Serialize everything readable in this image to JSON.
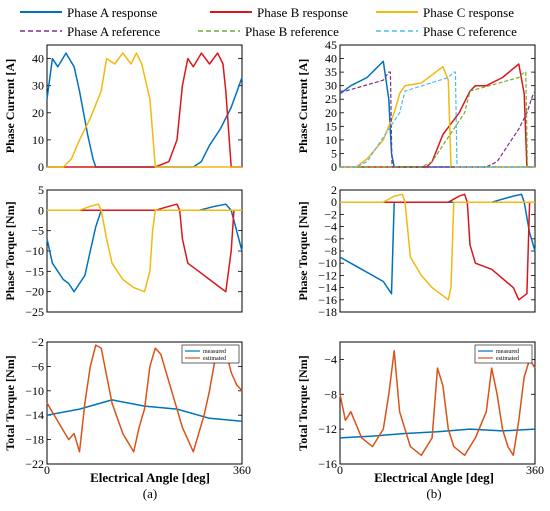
{
  "legend": [
    {
      "label": "Phase A response",
      "color": "#0072BD",
      "dash": false
    },
    {
      "label": "Phase B response",
      "color": "#D9171B",
      "dash": false
    },
    {
      "label": "Phase C response",
      "color": "#F2B90F",
      "dash": false
    },
    {
      "label": "Phase A reference",
      "color": "#7E2F8E",
      "dash": true
    },
    {
      "label": "Phase B reference",
      "color": "#77AC30",
      "dash": true
    },
    {
      "label": "Phase C reference",
      "color": "#4DBEEE",
      "dash": true
    }
  ],
  "xlabel": "Electrical Angle [deg]",
  "xtick_start": "0",
  "xtick_end": "360",
  "sublabels": [
    "(a)",
    "(b)"
  ],
  "colors": {
    "a": "#0072BD",
    "b": "#D9171B",
    "c": "#F2B90F",
    "measured": "#0072BD",
    "estimated": "#D95319"
  },
  "chart_data": [
    {
      "type": "line",
      "panel": "a-top",
      "ylabel": "Phase Current [A]",
      "ylim": [
        0,
        45
      ],
      "yticks": [
        0,
        10,
        20,
        30,
        40
      ],
      "xlim": [
        0,
        360
      ],
      "series": [
        {
          "name": "Phase A response",
          "x": [
            0,
            10,
            20,
            35,
            50,
            60,
            75,
            85,
            90,
            270,
            285,
            300,
            320,
            340,
            360
          ],
          "y": [
            25,
            40,
            37,
            42,
            37,
            28,
            12,
            3,
            0,
            0,
            2,
            8,
            14,
            22,
            33
          ]
        },
        {
          "name": "Phase B response",
          "x": [
            0,
            200,
            225,
            240,
            245,
            250,
            260,
            270,
            285,
            300,
            315,
            325,
            330,
            340,
            360
          ],
          "y": [
            0,
            0,
            2,
            10,
            20,
            30,
            40,
            37,
            42,
            38,
            42,
            38,
            28,
            0,
            0
          ]
        },
        {
          "name": "Phase C response",
          "x": [
            0,
            30,
            45,
            60,
            80,
            100,
            110,
            125,
            140,
            155,
            165,
            175,
            190,
            200,
            360
          ],
          "y": [
            0,
            0,
            3,
            10,
            18,
            28,
            40,
            38,
            42,
            38,
            42,
            38,
            25,
            0,
            0
          ]
        }
      ]
    },
    {
      "type": "line",
      "panel": "b-top",
      "ylabel": "Phase Current [A]",
      "ylim": [
        0,
        45
      ],
      "yticks": [
        0,
        5,
        10,
        15,
        20,
        25,
        30,
        35,
        40,
        45
      ],
      "xlim": [
        0,
        360
      ],
      "series": [
        {
          "name": "Phase A response",
          "x": [
            0,
            20,
            50,
            80,
            90,
            95,
            100,
            360
          ],
          "y": [
            27,
            30,
            33,
            39,
            25,
            5,
            0,
            0
          ]
        },
        {
          "name": "Phase B response",
          "x": [
            0,
            160,
            170,
            190,
            220,
            240,
            250,
            270,
            300,
            330,
            340,
            345,
            360
          ],
          "y": [
            0,
            0,
            2,
            12,
            20,
            28,
            30,
            30,
            33,
            38,
            27,
            0,
            0
          ]
        },
        {
          "name": "Phase C response",
          "x": [
            0,
            30,
            50,
            80,
            100,
            110,
            120,
            150,
            190,
            200,
            205,
            210,
            360
          ],
          "y": [
            0,
            0,
            3,
            10,
            20,
            27,
            30,
            31,
            37,
            32,
            0,
            0,
            0
          ]
        },
        {
          "name": "Phase A reference",
          "x": [
            0,
            10,
            80,
            90,
            93,
            96,
            270,
            290,
            310,
            330,
            345,
            355,
            360
          ],
          "y": [
            28,
            28,
            32,
            35,
            35,
            0,
            0,
            2,
            8,
            14,
            20,
            26,
            28
          ]
        },
        {
          "name": "Phase B reference",
          "x": [
            0,
            150,
            170,
            190,
            210,
            230,
            240,
            330,
            340,
            343,
            346,
            360
          ],
          "y": [
            0,
            0,
            2,
            8,
            14,
            20,
            28,
            33,
            35,
            35,
            0,
            0
          ]
        },
        {
          "name": "Phase C reference",
          "x": [
            0,
            30,
            50,
            70,
            90,
            110,
            120,
            200,
            210,
            213,
            216,
            360
          ],
          "y": [
            0,
            0,
            2,
            8,
            14,
            20,
            28,
            33,
            35,
            35,
            0,
            0
          ]
        }
      ]
    },
    {
      "type": "line",
      "panel": "a-mid",
      "ylabel": "Phase Torque [Nm]",
      "ylim": [
        -25,
        5
      ],
      "yticks": [
        -25,
        -20,
        -15,
        -10,
        -5,
        0,
        5
      ],
      "xlim": [
        0,
        360
      ],
      "series": [
        {
          "name": "Phase A response",
          "x": [
            0,
            10,
            20,
            30,
            40,
            50,
            60,
            70,
            80,
            90,
            100,
            280,
            310,
            330,
            340,
            350,
            360
          ],
          "y": [
            -7,
            -13,
            -15,
            -17,
            -18,
            -20,
            -18,
            -16,
            -10,
            -4,
            0,
            0,
            1,
            1.5,
            0,
            -5,
            -10
          ]
        },
        {
          "name": "Phase B response",
          "x": [
            0,
            200,
            225,
            240,
            245,
            250,
            260,
            280,
            300,
            320,
            330,
            340,
            345,
            360
          ],
          "y": [
            0,
            0,
            1,
            1.5,
            0,
            -7,
            -13,
            -15,
            -17,
            -19,
            -20,
            -10,
            0,
            0
          ]
        },
        {
          "name": "Phase C response",
          "x": [
            0,
            60,
            80,
            95,
            100,
            110,
            120,
            140,
            160,
            180,
            190,
            195,
            200,
            360
          ],
          "y": [
            0,
            0,
            1,
            1.5,
            0,
            -7,
            -13,
            -17,
            -19,
            -20,
            -15,
            -5,
            0,
            0
          ]
        }
      ]
    },
    {
      "type": "line",
      "panel": "b-mid",
      "ylabel": "Phase Torque [Nm]",
      "ylim": [
        -18,
        2
      ],
      "yticks": [
        -18,
        -16,
        -14,
        -12,
        -10,
        -8,
        -6,
        -4,
        -2,
        0,
        2
      ],
      "xlim": [
        0,
        360
      ],
      "series": [
        {
          "name": "Phase A response",
          "x": [
            0,
            20,
            40,
            60,
            80,
            95,
            100,
            280,
            320,
            335,
            340,
            350,
            360
          ],
          "y": [
            -9,
            -10,
            -11,
            -12,
            -13,
            -15,
            0,
            0,
            1,
            1.3,
            0,
            -5,
            -8
          ]
        },
        {
          "name": "Phase B response",
          "x": [
            0,
            200,
            220,
            230,
            235,
            240,
            250,
            280,
            320,
            330,
            345,
            350,
            360
          ],
          "y": [
            0,
            0,
            1,
            1.3,
            0,
            -7,
            -10,
            -11,
            -14,
            -16,
            -15,
            0,
            0
          ]
        },
        {
          "name": "Phase C response",
          "x": [
            0,
            80,
            100,
            115,
            120,
            130,
            150,
            170,
            185,
            200,
            205,
            210,
            360
          ],
          "y": [
            0,
            0,
            1,
            1.3,
            0,
            -9,
            -12,
            -14,
            -15,
            -16,
            -14,
            0,
            0
          ]
        }
      ]
    },
    {
      "type": "line",
      "panel": "a-bot",
      "ylabel": "Total Torque [Nm]",
      "ylim": [
        -22,
        -2
      ],
      "yticks": [
        -22,
        -18,
        -14,
        -10,
        -6,
        -2
      ],
      "xlim": [
        0,
        360
      ],
      "legend_entries": [
        "measured",
        "estimated"
      ],
      "series": [
        {
          "name": "measured",
          "x": [
            0,
            60,
            120,
            180,
            240,
            300,
            360
          ],
          "y": [
            -14,
            -13,
            -11.5,
            -12.5,
            -13,
            -14.5,
            -15
          ]
        },
        {
          "name": "estimated",
          "x": [
            0,
            20,
            40,
            50,
            60,
            70,
            80,
            90,
            100,
            120,
            140,
            160,
            170,
            180,
            190,
            200,
            210,
            230,
            250,
            270,
            280,
            290,
            300,
            310,
            320,
            330,
            340,
            350,
            360
          ],
          "y": [
            -12,
            -15,
            -18,
            -17,
            -20,
            -12,
            -6,
            -2.5,
            -3,
            -12,
            -17,
            -20,
            -16,
            -13,
            -6,
            -3,
            -4,
            -10,
            -16,
            -20,
            -17,
            -14,
            -10,
            -5,
            -3,
            -3.5,
            -7,
            -9,
            -10
          ]
        }
      ]
    },
    {
      "type": "line",
      "panel": "b-bot",
      "ylabel": "Total Torque [Nm]",
      "ylim": [
        -16,
        -2
      ],
      "yticks": [
        -16,
        -12,
        -8,
        -4
      ],
      "xlim": [
        0,
        360
      ],
      "legend_entries": [
        "measured",
        "estimated"
      ],
      "series": [
        {
          "name": "measured",
          "x": [
            0,
            60,
            120,
            180,
            240,
            300,
            360
          ],
          "y": [
            -13,
            -12.8,
            -12.5,
            -12.3,
            -12,
            -12.2,
            -12
          ]
        },
        {
          "name": "estimated",
          "x": [
            0,
            10,
            20,
            40,
            60,
            80,
            90,
            100,
            110,
            130,
            150,
            170,
            180,
            190,
            200,
            210,
            230,
            250,
            270,
            280,
            290,
            300,
            310,
            320,
            330,
            340,
            350,
            360
          ],
          "y": [
            -8,
            -11,
            -10,
            -13,
            -14,
            -12,
            -8,
            -3,
            -10,
            -14,
            -15,
            -13,
            -5,
            -7,
            -12,
            -14,
            -15,
            -13,
            -10,
            -5,
            -8,
            -12,
            -14,
            -15,
            -11,
            -6,
            -4,
            -5
          ]
        }
      ]
    }
  ]
}
